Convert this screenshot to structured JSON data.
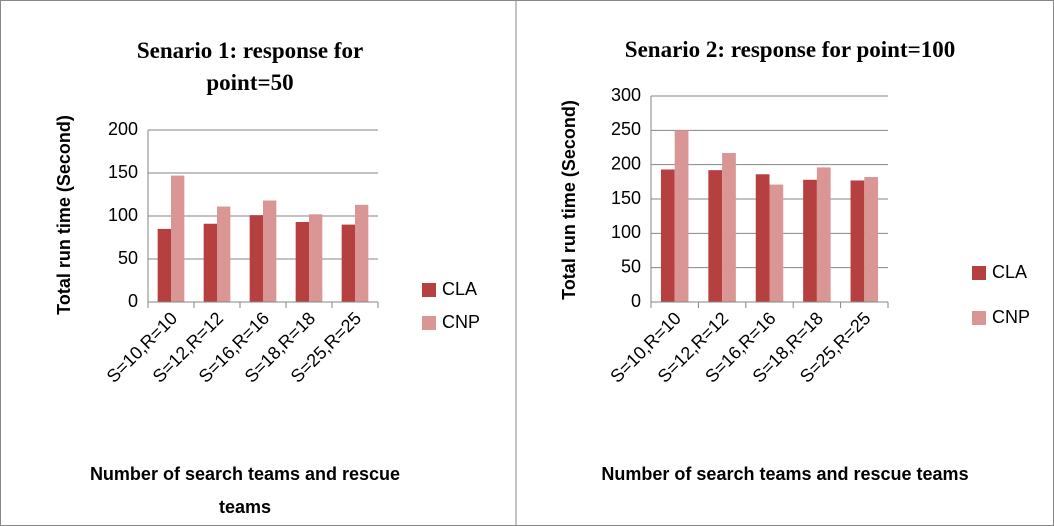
{
  "chart_data": [
    {
      "type": "bar",
      "title": "Senario 1: response for point=50",
      "y_label": "Total run time (Second)",
      "x_label": "Number of search teams and rescue teams",
      "categories": [
        "S=10,R=10",
        "S=12,R=12",
        "S=16,R=16",
        "S=18,R=18",
        "S=25,R=25"
      ],
      "series": [
        {
          "name": "CLA",
          "color": "#b5403f",
          "values": [
            85,
            91,
            101,
            93,
            90
          ]
        },
        {
          "name": "CNP",
          "color": "#d99694",
          "values": [
            147,
            111,
            118,
            102,
            113
          ]
        }
      ],
      "ylim": [
        0,
        200
      ],
      "yticks": [
        0,
        50,
        100,
        150,
        200
      ],
      "grid": true,
      "legend": "right"
    },
    {
      "type": "bar",
      "title": "Senario 2: response for point=100",
      "y_label": "Total run time (Second)",
      "x_label": "Number of search teams and rescue teams",
      "categories": [
        "S=10,R=10",
        "S=12,R=12",
        "S=16,R=16",
        "S=18,R=18",
        "S=25,R=25"
      ],
      "series": [
        {
          "name": "CLA",
          "color": "#b5403f",
          "values": [
            193,
            192,
            186,
            178,
            177
          ]
        },
        {
          "name": "CNP",
          "color": "#d99694",
          "values": [
            250,
            217,
            171,
            196,
            182
          ]
        }
      ],
      "ylim": [
        0,
        300
      ],
      "yticks": [
        0,
        50,
        100,
        150,
        200,
        250,
        300
      ],
      "grid": true,
      "legend": "right"
    }
  ]
}
